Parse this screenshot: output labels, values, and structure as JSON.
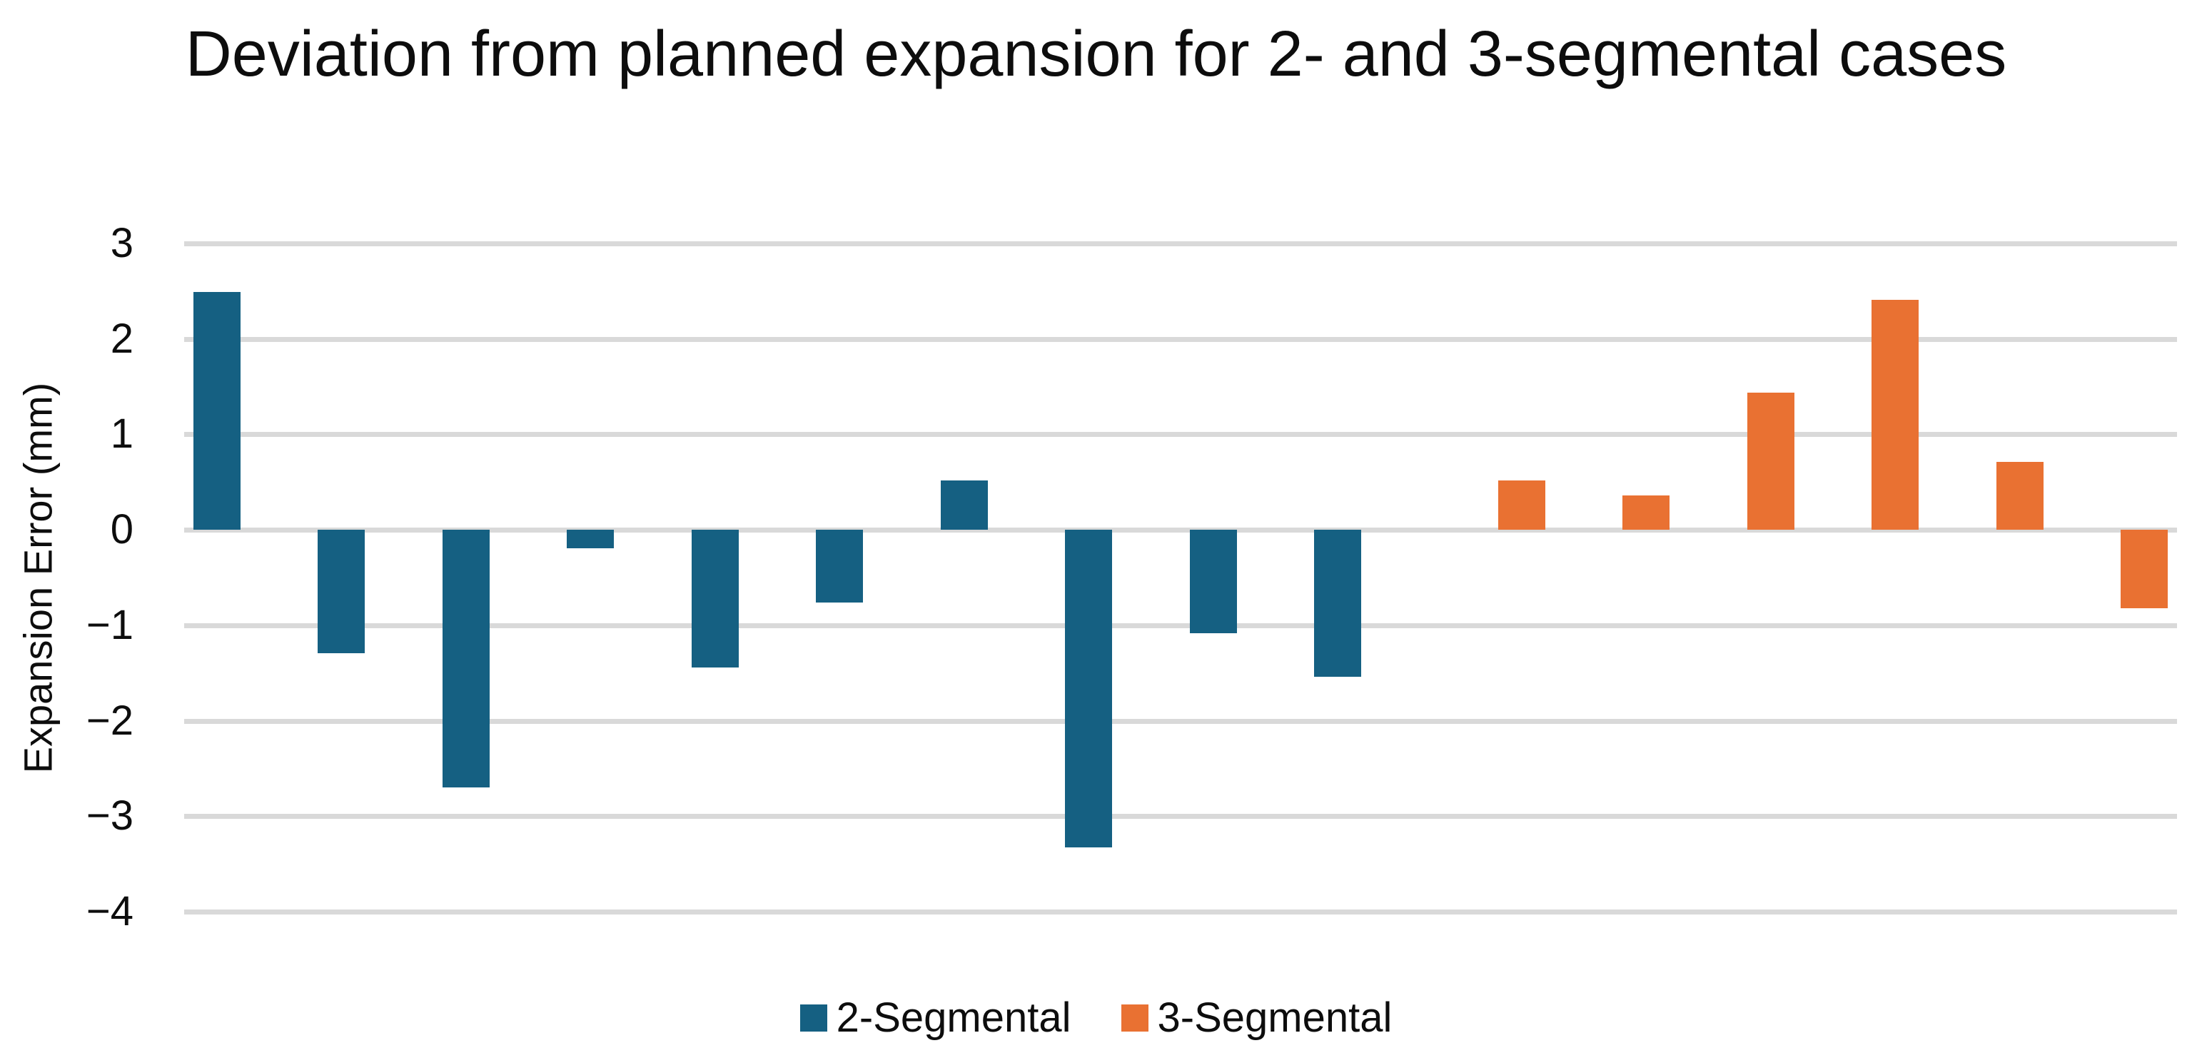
{
  "chart_data": {
    "type": "bar",
    "title": "Deviation from planned expansion for 2- and 3-segmental cases",
    "xlabel": "",
    "ylabel": "Expansion Error (mm)",
    "ylim": [
      -4,
      3
    ],
    "ytick_values": [
      3,
      2,
      1,
      0,
      -1,
      -2,
      -3,
      -4
    ],
    "ytick_labels": [
      "3",
      "2",
      "1",
      "0",
      "−1",
      "−2",
      "−3",
      "−4"
    ],
    "grid": true,
    "legend_position": "bottom",
    "n_category_slots": 16,
    "categories": [
      "",
      "",
      "",
      "",
      "",
      "",
      "",
      "",
      "",
      "",
      "",
      "",
      "",
      "",
      "",
      ""
    ],
    "series": [
      {
        "name": "2-Segmental",
        "color": "#156082",
        "category_slots": [
          0,
          1,
          2,
          3,
          4,
          5,
          6,
          7,
          8,
          9
        ],
        "values": [
          2.49,
          -1.29,
          -2.7,
          -0.19,
          -1.44,
          -0.76,
          0.52,
          -3.33,
          -1.08,
          -1.54
        ]
      },
      {
        "name": "3-Segmental",
        "color": "#E97132",
        "category_slots": [
          10,
          11,
          12,
          13,
          14,
          15
        ],
        "values": [
          0.52,
          0.36,
          1.44,
          2.41,
          0.71,
          -0.82
        ]
      }
    ]
  },
  "legend": {
    "items": [
      {
        "label": "2-Segmental",
        "color": "#156082"
      },
      {
        "label": "3-Segmental",
        "color": "#E97132"
      }
    ]
  },
  "colors": {
    "background": "#FFFFFF",
    "gridline": "#D9D9D9",
    "text": "#0d0d0d",
    "series_blue": "#156082",
    "series_orange": "#E97132"
  }
}
